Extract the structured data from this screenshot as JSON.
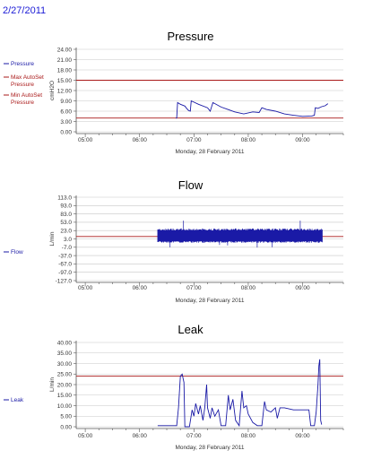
{
  "date_label": "2/27/2011",
  "chart_data": [
    {
      "type": "line",
      "title": "Pressure",
      "ylabel": "cmH2O",
      "xlabel": "Monday, 28 February 2011",
      "x_ticks": [
        "05:00",
        "06:00",
        "07:00",
        "08:00",
        "09:00"
      ],
      "y_ticks": [
        "24.00",
        "21.00",
        "18.00",
        "15.00",
        "12.00",
        "9.00",
        "6.00",
        "3.00",
        "0.00"
      ],
      "ylim": [
        0,
        24
      ],
      "legend": [
        {
          "name": "Pressure",
          "color": "#1a1aa6"
        },
        {
          "name": "Max AutoSet Pressure",
          "color": "#aa1a1a"
        },
        {
          "name": "Min AutoSet Pressure",
          "color": "#aa1a1a"
        }
      ],
      "reference_lines": [
        {
          "name": "Max AutoSet Pressure",
          "y": 15,
          "color": "#aa1a1a"
        },
        {
          "name": "Min AutoSet Pressure",
          "y": 4,
          "color": "#aa1a1a"
        }
      ],
      "series": [
        {
          "name": "Pressure",
          "color": "#1a1aa6",
          "points": [
            [
              "06:40",
              4
            ],
            [
              "06:41",
              4
            ],
            [
              "06:42",
              8.5
            ],
            [
              "06:45",
              8
            ],
            [
              "06:50",
              7.5
            ],
            [
              "06:52",
              6.8
            ],
            [
              "06:54",
              6.2
            ],
            [
              "06:56",
              6
            ],
            [
              "06:57",
              9
            ],
            [
              "07:05",
              8
            ],
            [
              "07:15",
              7
            ],
            [
              "07:18",
              6
            ],
            [
              "07:21",
              8.5
            ],
            [
              "07:30",
              7.2
            ],
            [
              "07:45",
              5.8
            ],
            [
              "07:55",
              5.2
            ],
            [
              "08:05",
              5.8
            ],
            [
              "08:12",
              5.6
            ],
            [
              "08:15",
              7
            ],
            [
              "08:20",
              6.5
            ],
            [
              "08:30",
              6
            ],
            [
              "08:40",
              5.2
            ],
            [
              "08:50",
              4.8
            ],
            [
              "09:00",
              4.5
            ],
            [
              "09:10",
              4.6
            ],
            [
              "09:13",
              4.8
            ],
            [
              "09:14",
              7
            ],
            [
              "09:17",
              6.8
            ],
            [
              "09:21",
              7.3
            ],
            [
              "09:25",
              7.6
            ],
            [
              "09:28",
              8.2
            ]
          ]
        }
      ]
    },
    {
      "type": "line",
      "title": "Flow",
      "ylabel": "L/min",
      "xlabel": "Monday, 28 February 2011",
      "x_ticks": [
        "05:00",
        "06:00",
        "07:00",
        "08:00",
        "09:00"
      ],
      "y_ticks": [
        "113.0",
        "93.0",
        "83.0",
        "53.0",
        "23.0",
        "3.0",
        "-7.0",
        "-37.0",
        "-67.0",
        "-97.0",
        "-127.0"
      ],
      "ylim": [
        -127,
        113
      ],
      "legend": [
        {
          "name": "Flow",
          "color": "#1a1aa6"
        }
      ],
      "reference_lines": [
        {
          "y": 0,
          "color": "#aa1a1a"
        }
      ],
      "series": [
        {
          "name": "Flow",
          "color": "#1a1aa6",
          "time_range": [
            "06:20",
            "09:22"
          ],
          "band_typical": [
            -18,
            23
          ],
          "spike_max": 53,
          "spike_min": -40
        }
      ]
    },
    {
      "type": "line",
      "title": "Leak",
      "ylabel": "L/min",
      "xlabel": "Monday, 28 February 2011",
      "x_ticks": [
        "05:00",
        "06:00",
        "07:00",
        "08:00",
        "09:00"
      ],
      "y_ticks": [
        "40.00",
        "35.00",
        "30.00",
        "25.00",
        "20.00",
        "15.00",
        "10.00",
        "5.00",
        "0.00"
      ],
      "ylim": [
        0,
        40
      ],
      "legend": [
        {
          "name": "Leak",
          "color": "#1a1aa6"
        }
      ],
      "reference_lines": [
        {
          "y": 24,
          "color": "#aa1a1a"
        }
      ],
      "series": [
        {
          "name": "Leak",
          "color": "#1a1aa6",
          "points": [
            [
              "06:20",
              0.5
            ],
            [
              "06:41",
              0.5
            ],
            [
              "06:43",
              9
            ],
            [
              "06:45",
              24
            ],
            [
              "06:47",
              25
            ],
            [
              "06:49",
              21
            ],
            [
              "06:50",
              0
            ],
            [
              "06:55",
              0
            ],
            [
              "06:58",
              8
            ],
            [
              "07:00",
              5
            ],
            [
              "07:02",
              11
            ],
            [
              "07:05",
              6
            ],
            [
              "07:07",
              10
            ],
            [
              "07:10",
              3
            ],
            [
              "07:12",
              9
            ],
            [
              "07:14",
              20
            ],
            [
              "07:15",
              9
            ],
            [
              "07:18",
              4
            ],
            [
              "07:20",
              9
            ],
            [
              "07:23",
              5
            ],
            [
              "07:27",
              8
            ],
            [
              "07:30",
              0.5
            ],
            [
              "07:35",
              0.5
            ],
            [
              "07:38",
              15
            ],
            [
              "07:40",
              8
            ],
            [
              "07:43",
              13
            ],
            [
              "07:46",
              3
            ],
            [
              "07:50",
              0.5
            ],
            [
              "07:53",
              17
            ],
            [
              "07:55",
              9
            ],
            [
              "07:58",
              10
            ],
            [
              "08:00",
              6
            ],
            [
              "08:05",
              2
            ],
            [
              "08:10",
              0.5
            ],
            [
              "08:15",
              0.5
            ],
            [
              "08:18",
              12
            ],
            [
              "08:20",
              8
            ],
            [
              "08:25",
              7
            ],
            [
              "08:30",
              9
            ],
            [
              "08:32",
              4
            ],
            [
              "08:35",
              9
            ],
            [
              "08:40",
              9
            ],
            [
              "08:50",
              8
            ],
            [
              "09:00",
              8
            ],
            [
              "09:05",
              8
            ],
            [
              "09:07",
              8
            ],
            [
              "09:09",
              0.5
            ],
            [
              "09:13",
              0.5
            ],
            [
              "09:15",
              7
            ],
            [
              "09:17",
              20
            ],
            [
              "09:18",
              29
            ],
            [
              "09:19",
              32
            ],
            [
              "09:20",
              3
            ],
            [
              "09:21",
              1
            ]
          ]
        }
      ]
    }
  ]
}
